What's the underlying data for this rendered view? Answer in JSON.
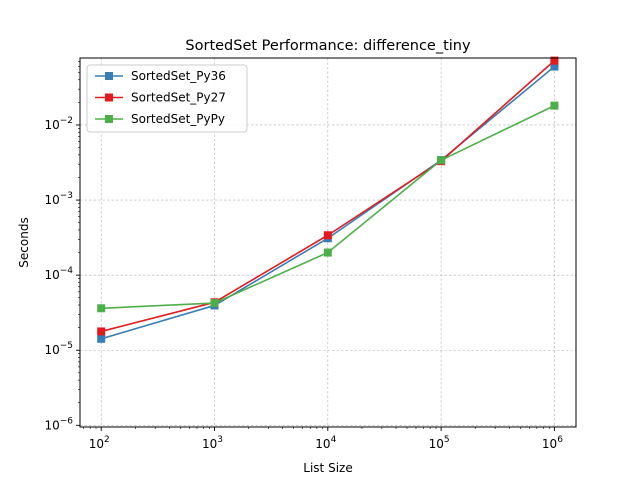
{
  "chart_data": {
    "type": "line",
    "title": "SortedSet Performance: difference_tiny",
    "xlabel": "List Size",
    "ylabel": "Seconds",
    "xscale": "log",
    "yscale": "log",
    "x": [
      100,
      1000,
      10000,
      100000,
      1000000
    ],
    "xlim": [
      65,
      1550000
    ],
    "ylim": [
      9.5e-07,
      0.078
    ],
    "x_ticks": [
      {
        "value": 100,
        "base": "10",
        "exp": "2"
      },
      {
        "value": 1000,
        "base": "10",
        "exp": "3"
      },
      {
        "value": 10000,
        "base": "10",
        "exp": "4"
      },
      {
        "value": 100000,
        "base": "10",
        "exp": "5"
      },
      {
        "value": 1000000,
        "base": "10",
        "exp": "6"
      }
    ],
    "y_ticks": [
      {
        "value": 1e-06,
        "base": "10",
        "exp": "−6"
      },
      {
        "value": 1e-05,
        "base": "10",
        "exp": "−5"
      },
      {
        "value": 0.0001,
        "base": "10",
        "exp": "−4"
      },
      {
        "value": 0.001,
        "base": "10",
        "exp": "−3"
      },
      {
        "value": 0.01,
        "base": "10",
        "exp": "−2"
      }
    ],
    "grid": true,
    "legend_position": "top-left",
    "series": [
      {
        "name": "SortedSet_Py36",
        "color": "#377eb8",
        "marker": "square",
        "values": [
          1.42e-05,
          3.95e-05,
          0.00031,
          0.0034,
          0.06
        ]
      },
      {
        "name": "SortedSet_Py27",
        "color": "#e41a1c",
        "marker": "square",
        "values": [
          1.78e-05,
          4.35e-05,
          0.00034,
          0.0033,
          0.072
        ]
      },
      {
        "name": "SortedSet_PyPy",
        "color": "#4daf4a",
        "marker": "square",
        "values": [
          3.62e-05,
          4.25e-05,
          0.0002,
          0.0034,
          0.0181
        ]
      }
    ]
  }
}
